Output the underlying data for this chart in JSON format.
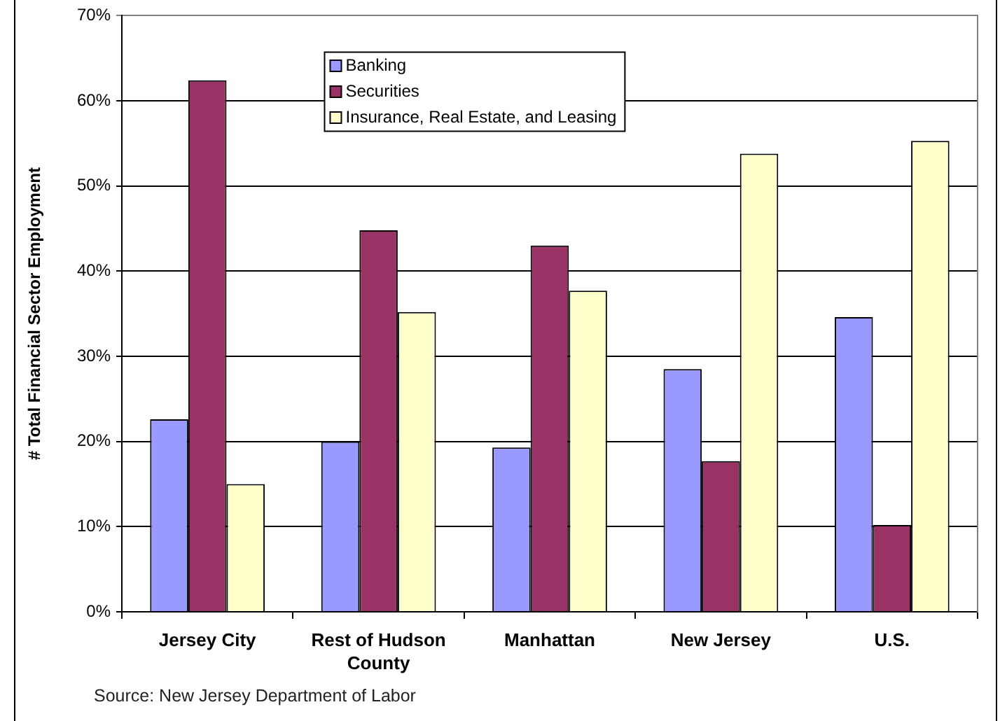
{
  "chart_data": {
    "type": "bar",
    "categories": [
      "Jersey City",
      "Rest of Hudson County",
      "Manhattan",
      "New Jersey",
      "U.S."
    ],
    "series": [
      {
        "name": "Banking",
        "color": "#9999ff",
        "values": [
          22.6,
          20.0,
          19.3,
          28.5,
          34.6
        ]
      },
      {
        "name": "Securities",
        "color": "#993366",
        "values": [
          62.4,
          44.8,
          43.0,
          17.7,
          10.2
        ]
      },
      {
        "name": "Insurance, Real Estate, and Leasing",
        "color": "#ffffcc",
        "values": [
          15.0,
          35.2,
          37.7,
          53.8,
          55.3
        ]
      }
    ],
    "ylabel": "# Total Financial Sector Employment",
    "ylim": [
      0,
      70
    ],
    "yticks": [
      {
        "value": 0,
        "label": "0%"
      },
      {
        "value": 10,
        "label": "10%"
      },
      {
        "value": 20,
        "label": "20%"
      },
      {
        "value": 30,
        "label": "30%"
      },
      {
        "value": 40,
        "label": "40%"
      },
      {
        "value": 50,
        "label": "50%"
      },
      {
        "value": 60,
        "label": "60%"
      },
      {
        "value": 70,
        "label": "70%"
      }
    ],
    "grid": "y",
    "legend": "top",
    "annotations": [
      "Source: New Jersey Department of Labor"
    ]
  }
}
